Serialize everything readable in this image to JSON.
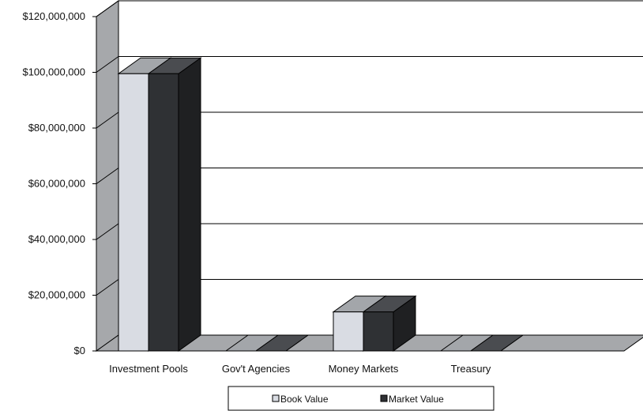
{
  "chart_data": {
    "type": "bar",
    "title": "",
    "xlabel": "",
    "ylabel": "",
    "categories": [
      "Investment Pools",
      "Gov't Agencies",
      "Money Markets",
      "Treasury"
    ],
    "series": [
      {
        "name": "Book Value",
        "values": [
          99500000,
          0,
          14000000,
          0
        ],
        "color": "#d9dce3"
      },
      {
        "name": "Market Value",
        "values": [
          99500000,
          0,
          14000000,
          0
        ],
        "color": "#2f3134"
      }
    ],
    "ylim": [
      0,
      120000000
    ],
    "y_ticks": [
      0,
      20000000,
      40000000,
      60000000,
      80000000,
      100000000,
      120000000
    ],
    "y_tick_labels": [
      "$0",
      "$20,000,000",
      "$40,000,000",
      "$60,000,000",
      "$80,000,000",
      "$100,000,000",
      "$120,000,000"
    ],
    "grid": true,
    "legend_position": "bottom",
    "style": "3d-column",
    "colors": {
      "wall": "#a6a8ab",
      "floor": "#a6a8ab",
      "gridline": "#000000",
      "book_top": "#a3a6aa",
      "book_side": "#7f8286",
      "market_top": "#4a4c50",
      "market_side": "#1f2022"
    }
  }
}
